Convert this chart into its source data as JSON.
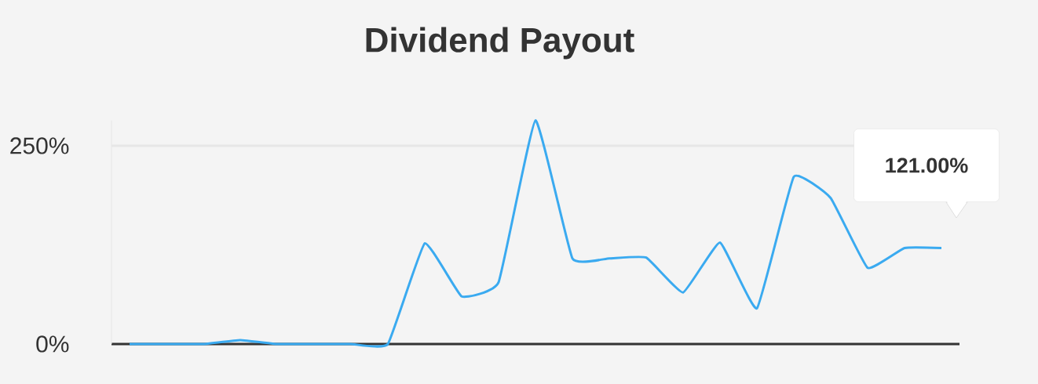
{
  "chart_data": {
    "type": "line",
    "title": "Dividend Payout",
    "categories": [
      null,
      null,
      null,
      null,
      null,
      null,
      null,
      null,
      null,
      null,
      null,
      null,
      null,
      null,
      null,
      null,
      null,
      null,
      null,
      null,
      null,
      null,
      null
    ],
    "series": [
      {
        "color": "#3aaaf0",
        "values": [
          0,
          0,
          0,
          5,
          0,
          0,
          0,
          0,
          127,
          60,
          78,
          282,
          108,
          108,
          109,
          65,
          128,
          45,
          211,
          184,
          96,
          121,
          121
        ]
      }
    ],
    "yticks": [
      {
        "value": 0,
        "label": "0%"
      },
      {
        "value": 250,
        "label": "250%"
      }
    ],
    "ylim": [
      0,
      282
    ],
    "grid": "y",
    "annotations": [
      "121.00%"
    ]
  }
}
